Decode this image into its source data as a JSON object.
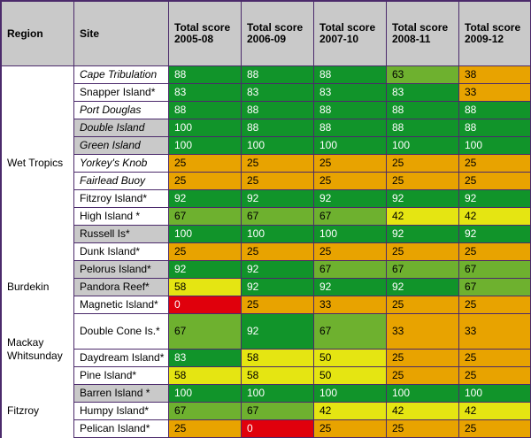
{
  "headers": {
    "region": "Region",
    "site": "Site",
    "years": [
      "Total score 2005-08",
      "Total score 2006-09",
      "Total score 2007-10",
      "Total score 2008-11",
      "Total score 2009-12"
    ]
  },
  "colors": {
    "dark_green": "#11942a",
    "light_green": "#6eb12f",
    "yellow": "#e5e512",
    "orange": "#e8a300",
    "red": "#e0000c",
    "grey": "#c9c9c9",
    "border": "#4b2a6b"
  },
  "regions": [
    {
      "name": "Wet Tropics",
      "rows": 11
    },
    {
      "name": "Burdekin",
      "rows": 3
    },
    {
      "name": "Mackay Whitsunday",
      "rows": 3
    },
    {
      "name": "Fitzroy",
      "rows": 3
    }
  ],
  "rows": [
    {
      "site": "Cape Tribulation",
      "italic": true,
      "shade": "white",
      "scores": [
        88,
        88,
        88,
        63,
        38
      ],
      "colors": [
        "dg",
        "dg",
        "dg",
        "lg",
        "or"
      ]
    },
    {
      "site": "Snapper Island*",
      "italic": false,
      "shade": "white",
      "scores": [
        83,
        83,
        83,
        83,
        33
      ],
      "colors": [
        "dg",
        "dg",
        "dg",
        "dg",
        "or"
      ]
    },
    {
      "site": "Port Douglas",
      "italic": true,
      "shade": "white",
      "scores": [
        88,
        88,
        88,
        88,
        88
      ],
      "colors": [
        "dg",
        "dg",
        "dg",
        "dg",
        "dg"
      ]
    },
    {
      "site": "Double Island",
      "italic": true,
      "shade": "grey",
      "scores": [
        100,
        88,
        88,
        88,
        88
      ],
      "colors": [
        "dg",
        "dg",
        "dg",
        "dg",
        "dg"
      ]
    },
    {
      "site": "Green Island",
      "italic": true,
      "shade": "grey",
      "scores": [
        100,
        100,
        100,
        100,
        100
      ],
      "colors": [
        "dg",
        "dg",
        "dg",
        "dg",
        "dg"
      ]
    },
    {
      "site": "Yorkey's Knob",
      "italic": true,
      "shade": "white",
      "scores": [
        25,
        25,
        25,
        25,
        25
      ],
      "colors": [
        "or",
        "or",
        "or",
        "or",
        "or"
      ]
    },
    {
      "site": "Fairlead Buoy",
      "italic": true,
      "shade": "white",
      "scores": [
        25,
        25,
        25,
        25,
        25
      ],
      "colors": [
        "or",
        "or",
        "or",
        "or",
        "or"
      ]
    },
    {
      "site": "Fitzroy Island*",
      "italic": false,
      "shade": "white",
      "scores": [
        92,
        92,
        92,
        92,
        92
      ],
      "colors": [
        "dg",
        "dg",
        "dg",
        "dg",
        "dg"
      ]
    },
    {
      "site": "High Island *",
      "italic": false,
      "shade": "white",
      "scores": [
        67,
        67,
        67,
        42,
        42
      ],
      "colors": [
        "lg",
        "lg",
        "lg",
        "ye",
        "ye"
      ]
    },
    {
      "site": "Russell Is*",
      "italic": false,
      "shade": "grey",
      "scores": [
        100,
        100,
        100,
        92,
        92
      ],
      "colors": [
        "dg",
        "dg",
        "dg",
        "dg",
        "dg"
      ]
    },
    {
      "site": "Dunk Island*",
      "italic": false,
      "shade": "white",
      "scores": [
        25,
        25,
        25,
        25,
        25
      ],
      "colors": [
        "or",
        "or",
        "or",
        "or",
        "or"
      ]
    },
    {
      "site": "Pelorus Island*",
      "italic": false,
      "shade": "grey",
      "scores": [
        92,
        92,
        67,
        67,
        67
      ],
      "colors": [
        "dg",
        "dg",
        "lg",
        "lg",
        "lg"
      ]
    },
    {
      "site": "Pandora Reef*",
      "italic": false,
      "shade": "grey",
      "scores": [
        58,
        92,
        92,
        92,
        67
      ],
      "colors": [
        "ye",
        "dg",
        "dg",
        "dg",
        "lg"
      ]
    },
    {
      "site": "Magnetic Island*",
      "italic": false,
      "shade": "white",
      "scores": [
        0,
        25,
        33,
        25,
        25
      ],
      "colors": [
        "re",
        "or",
        "or",
        "or",
        "or"
      ]
    },
    {
      "site": "Double Cone Is.*",
      "italic": false,
      "shade": "white",
      "tall": true,
      "scores": [
        67,
        92,
        67,
        33,
        33
      ],
      "colors": [
        "lg",
        "dg",
        "lg",
        "or",
        "or"
      ]
    },
    {
      "site": "Daydream Island*",
      "italic": false,
      "shade": "white",
      "scores": [
        83,
        58,
        50,
        25,
        25
      ],
      "colors": [
        "dg",
        "ye",
        "ye",
        "or",
        "or"
      ]
    },
    {
      "site": "Pine Island*",
      "italic": false,
      "shade": "white",
      "scores": [
        58,
        58,
        50,
        25,
        25
      ],
      "colors": [
        "ye",
        "ye",
        "ye",
        "or",
        "or"
      ]
    },
    {
      "site": "Barren Island *",
      "italic": false,
      "shade": "grey",
      "scores": [
        100,
        100,
        100,
        100,
        100
      ],
      "colors": [
        "dg",
        "dg",
        "dg",
        "dg",
        "dg"
      ]
    },
    {
      "site": "Humpy Island*",
      "italic": false,
      "shade": "white",
      "scores": [
        67,
        67,
        42,
        42,
        42
      ],
      "colors": [
        "lg",
        "lg",
        "ye",
        "ye",
        "ye"
      ]
    },
    {
      "site": "Pelican Island*",
      "italic": false,
      "shade": "white",
      "scores": [
        25,
        0,
        25,
        25,
        25
      ],
      "colors": [
        "or",
        "re",
        "or",
        "or",
        "or"
      ]
    }
  ]
}
